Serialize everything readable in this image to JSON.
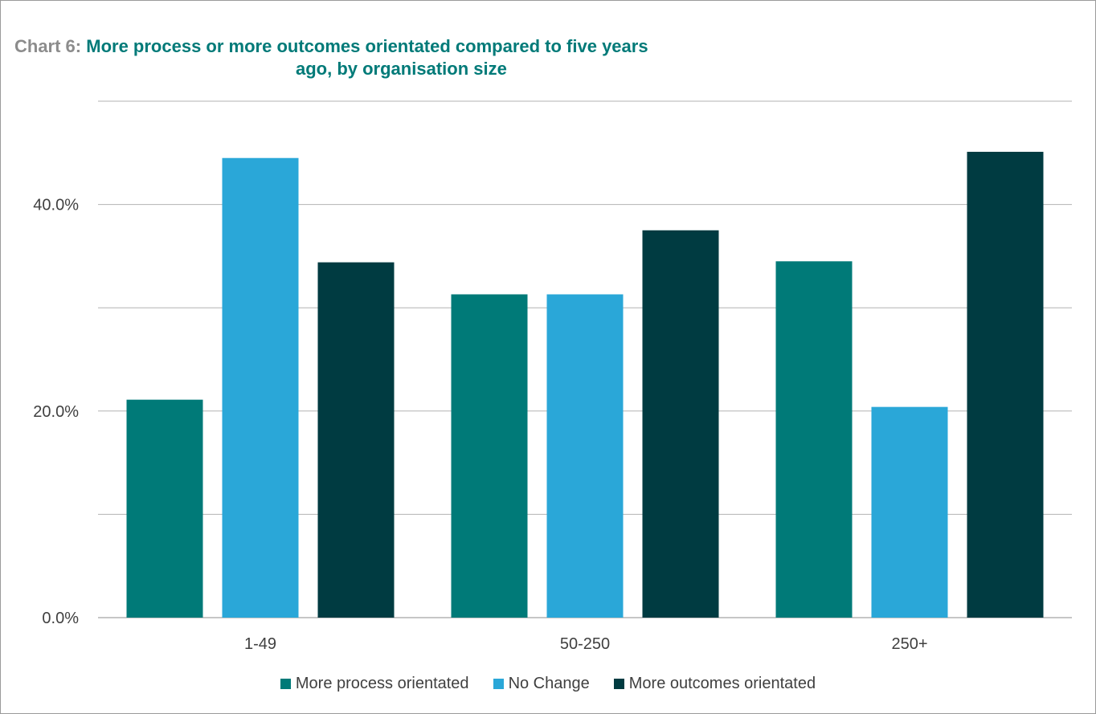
{
  "chart_data": {
    "type": "bar",
    "title_prefix": "Chart 6:",
    "title_line1": "More process or more outcomes orientated compared to five years",
    "title_line2": "ago, by organisation size",
    "categories": [
      "1-49",
      "50-250",
      "250+"
    ],
    "series": [
      {
        "name": "More process orientated",
        "color": "#007a78",
        "values": [
          21.1,
          31.3,
          34.5
        ]
      },
      {
        "name": "No Change",
        "color": "#2aa7d8",
        "values": [
          44.5,
          31.3,
          20.4
        ]
      },
      {
        "name": "More outcomes orientated",
        "color": "#003b41",
        "values": [
          34.4,
          37.5,
          45.1
        ]
      }
    ],
    "ylim": [
      0,
      50
    ],
    "yticks": [
      0,
      20,
      40
    ],
    "ytick_labels": [
      "0.0%",
      "20.0%",
      "40.0%"
    ],
    "gridlines": [
      0,
      10,
      20,
      30,
      40,
      50
    ],
    "grid": true,
    "legend_position": "bottom"
  }
}
